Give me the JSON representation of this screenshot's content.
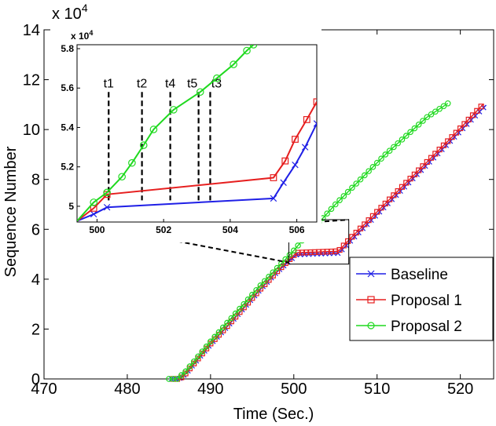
{
  "chart_data": {
    "type": "line",
    "xlabel": "Time (Sec.)",
    "ylabel": "Sequence Number",
    "xlim": [
      470,
      524
    ],
    "ylim": [
      0,
      140000
    ],
    "y_exponent_label": "x 10",
    "y_exponent_power": "4",
    "x_ticks": [
      470,
      480,
      490,
      500,
      510,
      520
    ],
    "x_tick_labels": [
      "470",
      "480",
      "490",
      "500",
      "510",
      "520"
    ],
    "y_ticks": [
      0,
      20000,
      40000,
      60000,
      80000,
      100000,
      120000,
      140000
    ],
    "y_tick_labels": [
      "0",
      "2",
      "4",
      "6",
      "8",
      "10",
      "12",
      "14"
    ],
    "grid": false,
    "legend_position": "bottom-right",
    "series": [
      {
        "name": "Baseline",
        "color": "#1f1fe6",
        "marker": "x",
        "points": [
          [
            485.3,
            0
          ],
          [
            486.2,
            0
          ],
          [
            487.0,
            2000
          ],
          [
            488.0,
            6000
          ],
          [
            490.0,
            14000
          ],
          [
            492.0,
            21000
          ],
          [
            494.0,
            28500
          ],
          [
            496.0,
            36000
          ],
          [
            498.0,
            43000
          ],
          [
            500.3,
            49800
          ],
          [
            505.3,
            50400
          ],
          [
            505.6,
            51200
          ],
          [
            506.0,
            52500
          ],
          [
            507.0,
            56000
          ],
          [
            510.0,
            66000
          ],
          [
            513.0,
            76000
          ],
          [
            516.0,
            86000
          ],
          [
            519.0,
            96000
          ],
          [
            521.5,
            104500
          ],
          [
            523.1,
            109800
          ]
        ]
      },
      {
        "name": "Proposal 1",
        "color": "#e61f1f",
        "marker": "square",
        "points": [
          [
            485.5,
            0
          ],
          [
            486.3,
            0
          ],
          [
            487.0,
            2200
          ],
          [
            488.0,
            6200
          ],
          [
            490.0,
            14200
          ],
          [
            492.0,
            21200
          ],
          [
            494.0,
            28700
          ],
          [
            496.0,
            36200
          ],
          [
            498.0,
            43200
          ],
          [
            500.3,
            50600
          ],
          [
            505.3,
            51200
          ],
          [
            505.6,
            52000
          ],
          [
            506.0,
            53500
          ],
          [
            507.0,
            57000
          ],
          [
            510.0,
            67000
          ],
          [
            513.0,
            77000
          ],
          [
            516.0,
            87000
          ],
          [
            519.0,
            97000
          ],
          [
            521.0,
            104000
          ],
          [
            522.8,
            110300
          ]
        ]
      },
      {
        "name": "Proposal 2",
        "color": "#1fd91f",
        "marker": "circle",
        "points": [
          [
            485.0,
            0
          ],
          [
            486.0,
            0
          ],
          [
            487.0,
            3000
          ],
          [
            488.0,
            7000
          ],
          [
            490.0,
            15000
          ],
          [
            492.0,
            22500
          ],
          [
            494.0,
            30000
          ],
          [
            496.0,
            37500
          ],
          [
            498.0,
            44500
          ],
          [
            500.0,
            51500
          ],
          [
            501.0,
            55500
          ],
          [
            502.0,
            59000
          ],
          [
            505.0,
            70000
          ],
          [
            508.0,
            80000
          ],
          [
            511.0,
            90000
          ],
          [
            514.0,
            99000
          ],
          [
            516.0,
            105000
          ],
          [
            518.5,
            110500
          ]
        ]
      }
    ],
    "inset": {
      "y_exponent_label": "x 10",
      "y_exponent_power": "4",
      "xlim": [
        499.4,
        506.6
      ],
      "ylim": [
        49200,
        58200
      ],
      "x_ticks": [
        500,
        502,
        504,
        506
      ],
      "x_tick_labels": [
        "500",
        "502",
        "504",
        "506"
      ],
      "y_ticks": [
        50000,
        52000,
        54000,
        56000,
        58000
      ],
      "y_tick_labels": [
        "5",
        "5.2",
        "5.4",
        "5.6",
        "5.8"
      ],
      "zoom_region": {
        "x": [
          499.4,
          506.6
        ],
        "y": [
          49200,
          58200
        ]
      },
      "events": [
        {
          "label": "t1",
          "x": 500.35
        },
        {
          "label": "t2",
          "x": 501.35
        },
        {
          "label": "t4",
          "x": 502.2
        },
        {
          "label": "t5",
          "x": 503.05
        },
        {
          "label": "t3",
          "x": 503.4
        }
      ],
      "series": [
        {
          "name": "Baseline",
          "points": [
            [
              499.4,
              49250
            ],
            [
              499.9,
              49600
            ],
            [
              500.3,
              49950
            ],
            [
              505.3,
              50400
            ],
            [
              505.6,
              51200
            ],
            [
              505.95,
              52100
            ],
            [
              506.25,
              53000
            ],
            [
              506.6,
              54200
            ]
          ]
        },
        {
          "name": "Proposal 1",
          "points": [
            [
              499.4,
              49250
            ],
            [
              499.9,
              49900
            ],
            [
              500.3,
              50600
            ],
            [
              505.3,
              51450
            ],
            [
              505.65,
              52300
            ],
            [
              505.95,
              53400
            ],
            [
              506.3,
              54400
            ],
            [
              506.6,
              55300
            ]
          ]
        },
        {
          "name": "Proposal 2",
          "points": [
            [
              499.4,
              49250
            ],
            [
              499.9,
              50200
            ],
            [
              500.3,
              50700
            ],
            [
              500.75,
              51500
            ],
            [
              501.05,
              52200
            ],
            [
              501.4,
              53100
            ],
            [
              501.7,
              53900
            ],
            [
              502.3,
              54900
            ],
            [
              503.1,
              55800
            ],
            [
              503.6,
              56500
            ],
            [
              504.1,
              57200
            ],
            [
              504.5,
              57900
            ],
            [
              504.7,
              58200
            ]
          ]
        }
      ]
    }
  }
}
